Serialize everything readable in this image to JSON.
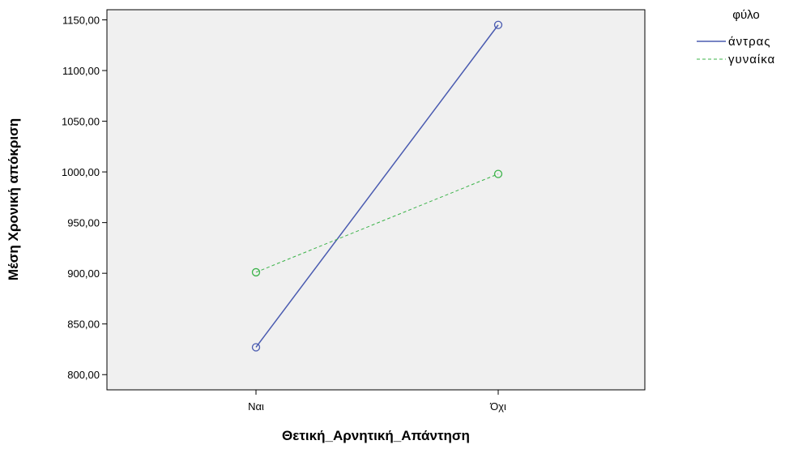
{
  "chart_data": {
    "type": "line",
    "title": "",
    "xlabel": "Θετική_Αρνητική_Απάντηση",
    "ylabel": "Μέση Χρονική απόκριση",
    "categories": [
      "Ναι",
      "Όχι"
    ],
    "ylim": [
      785,
      1160
    ],
    "yticks": [
      800,
      850,
      900,
      950,
      1000,
      1050,
      1100,
      1150
    ],
    "ytick_labels": [
      "800,00",
      "850,00",
      "900,00",
      "950,00",
      "1000,00",
      "1050,00",
      "1100,00",
      "1150,00"
    ],
    "grid": false,
    "legend": {
      "title": "φύλο",
      "position": "top-right"
    },
    "series": [
      {
        "name": "άντρας",
        "values": [
          827,
          1145
        ],
        "color": "#4a5bb0",
        "dash": "solid"
      },
      {
        "name": "γυναίκα",
        "values": [
          901,
          998
        ],
        "color": "#3cb34a",
        "dash": "dashed"
      }
    ]
  }
}
